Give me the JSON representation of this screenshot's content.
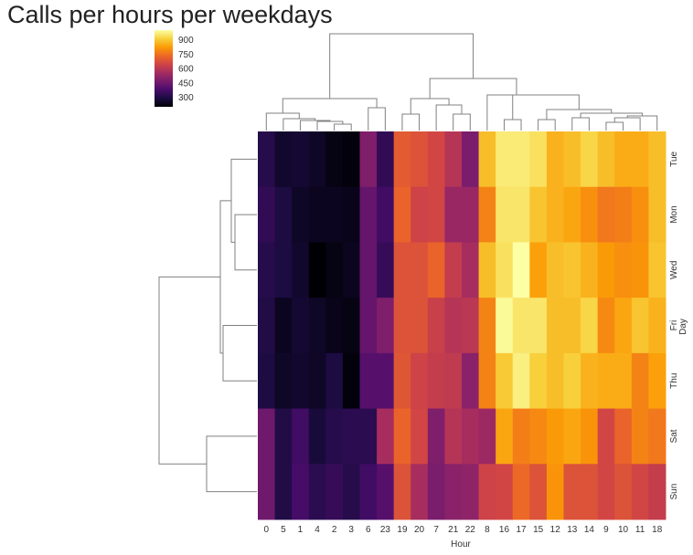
{
  "chart_data": {
    "type": "heatmap",
    "subtype": "clustermap",
    "title": "Calls per hours per weekdays",
    "xlabel": "Hour",
    "ylabel": "Day",
    "colormap": "inferno",
    "colormap_stops": [
      "#000004",
      "#1b0c41",
      "#4a0c6b",
      "#781c6d",
      "#a52c60",
      "#cf4446",
      "#ed6925",
      "#fb9b06",
      "#f7d13d",
      "#fcffa4"
    ],
    "color_range": [
      200,
      1000
    ],
    "colorbar_ticks": [
      "900",
      "750",
      "600",
      "450",
      "300"
    ],
    "colorbar_tick_values": [
      900,
      750,
      600,
      450,
      300
    ],
    "x_categories": [
      "0",
      "5",
      "1",
      "4",
      "2",
      "3",
      "6",
      "23",
      "19",
      "20",
      "7",
      "21",
      "22",
      "8",
      "16",
      "17",
      "15",
      "12",
      "13",
      "14",
      "9",
      "10",
      "11",
      "18"
    ],
    "y_categories": [
      "Tue",
      "Mon",
      "Wed",
      "Fri",
      "Thu",
      "Sat",
      "Sun"
    ],
    "values": [
      [
        310,
        260,
        270,
        250,
        220,
        210,
        480,
        330,
        700,
        680,
        650,
        590,
        470,
        880,
        960,
        960,
        940,
        860,
        880,
        920,
        880,
        850,
        850,
        880
      ],
      [
        330,
        290,
        250,
        240,
        240,
        230,
        430,
        360,
        720,
        640,
        650,
        530,
        530,
        780,
        950,
        950,
        890,
        860,
        840,
        800,
        760,
        770,
        800,
        880
      ],
      [
        310,
        290,
        260,
        200,
        220,
        240,
        430,
        340,
        680,
        680,
        720,
        620,
        560,
        880,
        940,
        1000,
        830,
        880,
        890,
        860,
        820,
        800,
        810,
        890
      ],
      [
        300,
        240,
        270,
        250,
        230,
        220,
        430,
        480,
        680,
        680,
        630,
        590,
        600,
        780,
        990,
        950,
        950,
        880,
        880,
        920,
        790,
        840,
        890,
        860
      ],
      [
        290,
        250,
        260,
        250,
        290,
        210,
        400,
        400,
        690,
        640,
        620,
        610,
        500,
        780,
        900,
        970,
        910,
        880,
        910,
        860,
        850,
        850,
        780,
        830
      ],
      [
        450,
        300,
        360,
        280,
        310,
        320,
        320,
        560,
        720,
        650,
        480,
        590,
        560,
        540,
        840,
        770,
        790,
        820,
        840,
        810,
        650,
        720,
        780,
        760
      ],
      [
        450,
        300,
        370,
        320,
        340,
        310,
        360,
        400,
        680,
        560,
        470,
        500,
        510,
        640,
        650,
        730,
        680,
        810,
        680,
        680,
        650,
        680,
        650,
        620
      ]
    ],
    "col_dendrogram": "present",
    "row_dendrogram": "present",
    "grid": false
  }
}
